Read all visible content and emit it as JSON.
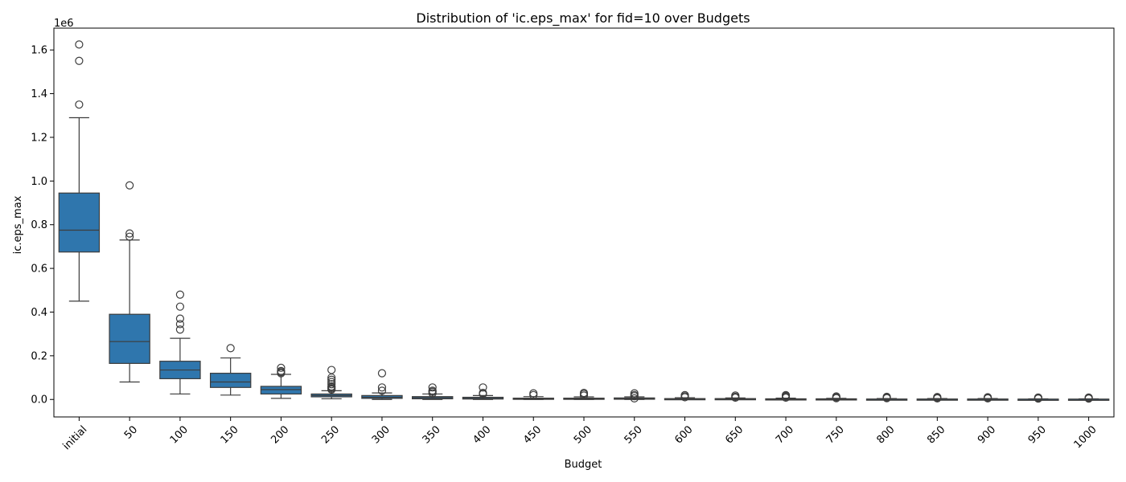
{
  "chart_data": {
    "type": "box",
    "title": "Distribution of 'ic.eps_max' for fid=10 over Budgets",
    "xlabel": "Budget",
    "ylabel": "ic.eps_max",
    "y_offset_text": "1e6",
    "categories": [
      "initial",
      "50",
      "100",
      "150",
      "200",
      "250",
      "300",
      "350",
      "400",
      "450",
      "500",
      "550",
      "600",
      "650",
      "700",
      "750",
      "800",
      "850",
      "900",
      "950",
      "1000"
    ],
    "yticks": [
      0,
      0.2,
      0.4,
      0.6,
      0.8,
      1.0,
      1.2,
      1.4,
      1.6
    ],
    "ytick_labels": [
      "0.0",
      "0.2",
      "0.4",
      "0.6",
      "0.8",
      "1.0",
      "1.2",
      "1.4",
      "1.6"
    ],
    "ylim": [
      -0.08,
      1.7
    ],
    "grid": false,
    "box_color": "#2f76ad",
    "boxes": [
      {
        "category": "initial",
        "whisker_low": 0.45,
        "q1": 0.675,
        "median": 0.775,
        "q3": 0.945,
        "whisker_high": 1.29,
        "outliers": [
          1.35,
          1.55,
          1.625
        ]
      },
      {
        "category": "50",
        "whisker_low": 0.08,
        "q1": 0.165,
        "median": 0.265,
        "q3": 0.39,
        "whisker_high": 0.73,
        "outliers": [
          0.745,
          0.76,
          0.98
        ]
      },
      {
        "category": "100",
        "whisker_low": 0.025,
        "q1": 0.095,
        "median": 0.135,
        "q3": 0.175,
        "whisker_high": 0.28,
        "outliers": [
          0.32,
          0.345,
          0.37,
          0.425,
          0.48
        ]
      },
      {
        "category": "150",
        "whisker_low": 0.02,
        "q1": 0.055,
        "median": 0.08,
        "q3": 0.12,
        "whisker_high": 0.19,
        "outliers": [
          0.235
        ]
      },
      {
        "category": "200",
        "whisker_low": 0.005,
        "q1": 0.025,
        "median": 0.045,
        "q3": 0.06,
        "whisker_high": 0.115,
        "outliers": [
          0.12,
          0.125,
          0.13,
          0.145
        ]
      },
      {
        "category": "250",
        "whisker_low": 0.003,
        "q1": 0.012,
        "median": 0.018,
        "q3": 0.025,
        "whisker_high": 0.04,
        "outliers": [
          0.045,
          0.05,
          0.055,
          0.06,
          0.07,
          0.08,
          0.09,
          0.1,
          0.135
        ]
      },
      {
        "category": "300",
        "whisker_low": 0.0,
        "q1": 0.005,
        "median": 0.01,
        "q3": 0.018,
        "whisker_high": 0.03,
        "outliers": [
          0.04,
          0.055,
          0.12
        ]
      },
      {
        "category": "350",
        "whisker_low": 0.0,
        "q1": 0.003,
        "median": 0.008,
        "q3": 0.013,
        "whisker_high": 0.025,
        "outliers": [
          0.028,
          0.035,
          0.04,
          0.055
        ]
      },
      {
        "category": "400",
        "whisker_low": 0.0,
        "q1": 0.002,
        "median": 0.005,
        "q3": 0.01,
        "whisker_high": 0.018,
        "outliers": [
          0.025,
          0.03,
          0.055
        ]
      },
      {
        "category": "450",
        "whisker_low": 0.0,
        "q1": 0.001,
        "median": 0.003,
        "q3": 0.006,
        "whisker_high": 0.013,
        "outliers": [
          0.02,
          0.028
        ]
      },
      {
        "category": "500",
        "whisker_low": 0.0,
        "q1": 0.001,
        "median": 0.003,
        "q3": 0.006,
        "whisker_high": 0.012,
        "outliers": [
          0.018,
          0.025,
          0.03
        ]
      },
      {
        "category": "550",
        "whisker_low": 0.0,
        "q1": 0.001,
        "median": 0.003,
        "q3": 0.007,
        "whisker_high": 0.012,
        "outliers": [
          0.005,
          0.015,
          0.02,
          0.028
        ]
      },
      {
        "category": "600",
        "whisker_low": 0.0,
        "q1": 0.001,
        "median": 0.002,
        "q3": 0.004,
        "whisker_high": 0.008,
        "outliers": [
          0.01,
          0.015,
          0.02
        ]
      },
      {
        "category": "650",
        "whisker_low": 0.0,
        "q1": 0.001,
        "median": 0.002,
        "q3": 0.004,
        "whisker_high": 0.007,
        "outliers": [
          0.008,
          0.012,
          0.018
        ]
      },
      {
        "category": "700",
        "whisker_low": 0.0,
        "q1": 0.0008,
        "median": 0.0015,
        "q3": 0.003,
        "whisker_high": 0.006,
        "outliers": [
          0.008,
          0.012,
          0.016,
          0.02
        ]
      },
      {
        "category": "750",
        "whisker_low": 0.0,
        "q1": 0.0008,
        "median": 0.0015,
        "q3": 0.003,
        "whisker_high": 0.005,
        "outliers": [
          0.006,
          0.01,
          0.014
        ]
      },
      {
        "category": "800",
        "whisker_low": 0.0,
        "q1": 0.0005,
        "median": 0.001,
        "q3": 0.002,
        "whisker_high": 0.004,
        "outliers": [
          0.006,
          0.009,
          0.012
        ]
      },
      {
        "category": "850",
        "whisker_low": 0.0,
        "q1": 0.0005,
        "median": 0.001,
        "q3": 0.002,
        "whisker_high": 0.004,
        "outliers": [
          0.005,
          0.008,
          0.011
        ]
      },
      {
        "category": "900",
        "whisker_low": 0.0,
        "q1": 0.0005,
        "median": 0.001,
        "q3": 0.002,
        "whisker_high": 0.004,
        "outliers": [
          0.005,
          0.008,
          0.01
        ]
      },
      {
        "category": "950",
        "whisker_low": 0.0,
        "q1": 0.0004,
        "median": 0.0008,
        "q3": 0.0015,
        "whisker_high": 0.003,
        "outliers": [
          0.004,
          0.007,
          0.009
        ]
      },
      {
        "category": "1000",
        "whisker_low": 0.0,
        "q1": 0.0004,
        "median": 0.0008,
        "q3": 0.0015,
        "whisker_high": 0.003,
        "outliers": [
          0.004,
          0.006,
          0.009
        ]
      }
    ]
  }
}
